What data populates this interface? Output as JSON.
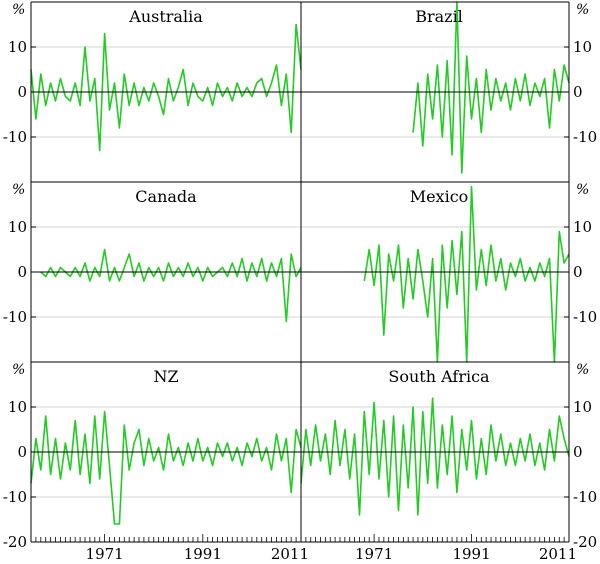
{
  "chart_data": {
    "type": "line",
    "unit_label": "%",
    "layout": "3x2 small multiples, shared axes",
    "x_ticks": [
      1971,
      1991,
      2011
    ],
    "xlim": [
      1956,
      2011
    ],
    "ylim": [
      -20,
      20
    ],
    "y_ticks": [
      10,
      0,
      -10
    ],
    "y_ticks_bottom": [
      10,
      0,
      -10,
      -20
    ],
    "grid": true,
    "line_color": "#22cc22",
    "panels": [
      {
        "title": "Australia",
        "series": [
          {
            "x": [
              1956,
              1957,
              1958,
              1959,
              1960,
              1961,
              1962,
              1963,
              1964,
              1965,
              1966,
              1967,
              1968,
              1969,
              1970,
              1971,
              1972,
              1973,
              1974,
              1975,
              1976,
              1977,
              1978,
              1979,
              1980,
              1981,
              1982,
              1983,
              1984,
              1985,
              1986,
              1987,
              1988,
              1989,
              1990,
              1991,
              1992,
              1993,
              1994,
              1995,
              1996,
              1997,
              1998,
              1999,
              2000,
              2001,
              2002,
              2003,
              2004,
              2005,
              2006,
              2007,
              2008,
              2009,
              2010,
              2011
            ],
            "values": [
              5,
              -6,
              4,
              -3,
              2,
              -2,
              3,
              -1,
              -2,
              2,
              -3,
              10,
              -2,
              3,
              -13,
              13,
              -4,
              2,
              -8,
              4,
              -3,
              2,
              -3,
              1,
              -2,
              2,
              -1,
              -5,
              3,
              -2,
              1,
              5,
              -3,
              2,
              -1,
              -2,
              1,
              -3,
              2,
              -1,
              1,
              -2,
              2,
              -1,
              1,
              -1,
              2,
              3,
              -1,
              2,
              6,
              -3,
              4,
              -9,
              15,
              5
            ]
          }
        ]
      },
      {
        "title": "Brazil",
        "series": [
          {
            "x": [
              1979,
              1980,
              1981,
              1982,
              1983,
              1984,
              1985,
              1986,
              1987,
              1988,
              1989,
              1990,
              1991,
              1992,
              1993,
              1994,
              1995,
              1996,
              1997,
              1998,
              1999,
              2000,
              2001,
              2002,
              2003,
              2004,
              2005,
              2006,
              2007,
              2008,
              2009,
              2010,
              2011
            ],
            "values": [
              -9,
              2,
              -12,
              4,
              -6,
              6,
              -10,
              7,
              -14,
              20,
              -18,
              8,
              -6,
              3,
              -9,
              5,
              -4,
              3,
              -2,
              2,
              -4,
              3,
              -2,
              4,
              -3,
              2,
              -1,
              3,
              -8,
              5,
              -2,
              6,
              2
            ]
          }
        ]
      },
      {
        "title": "Canada",
        "series": [
          {
            "x": [
              1958,
              1959,
              1960,
              1961,
              1962,
              1963,
              1964,
              1965,
              1966,
              1967,
              1968,
              1969,
              1970,
              1971,
              1972,
              1973,
              1974,
              1975,
              1976,
              1977,
              1978,
              1979,
              1980,
              1981,
              1982,
              1983,
              1984,
              1985,
              1986,
              1987,
              1988,
              1989,
              1990,
              1991,
              1992,
              1993,
              1994,
              1995,
              1996,
              1997,
              1998,
              1999,
              2000,
              2001,
              2002,
              2003,
              2004,
              2005,
              2006,
              2007,
              2008,
              2009,
              2010,
              2011
            ],
            "values": [
              0,
              -1,
              1,
              -1,
              1,
              0,
              -1,
              1,
              -1,
              2,
              -2,
              1,
              -1,
              5,
              -2,
              1,
              -2,
              1,
              4,
              -1,
              2,
              -2,
              1,
              -1,
              1,
              -2,
              2,
              -1,
              1,
              -1,
              2,
              -1,
              1,
              -2,
              1,
              -1,
              0,
              1,
              -1,
              2,
              -1,
              3,
              -2,
              2,
              -1,
              3,
              -2,
              2,
              -1,
              3,
              -11,
              4,
              -1,
              1
            ]
          }
        ]
      },
      {
        "title": "Mexico",
        "series": [
          {
            "x": [
              1969,
              1970,
              1971,
              1972,
              1973,
              1974,
              1975,
              1976,
              1977,
              1978,
              1979,
              1980,
              1981,
              1982,
              1983,
              1984,
              1985,
              1986,
              1987,
              1988,
              1989,
              1990,
              1991,
              1992,
              1993,
              1994,
              1995,
              1996,
              1997,
              1998,
              1999,
              2000,
              2001,
              2002,
              2003,
              2004,
              2005,
              2006,
              2007,
              2008,
              2009,
              2010,
              2011
            ],
            "values": [
              -2,
              5,
              -3,
              6,
              -14,
              4,
              -2,
              6,
              -8,
              3,
              -6,
              5,
              -2,
              -10,
              3,
              -20,
              6,
              -8,
              7,
              -5,
              9,
              -20,
              19,
              -4,
              5,
              -3,
              6,
              -2,
              3,
              -4,
              2,
              -1,
              3,
              -2,
              1,
              -2,
              2,
              -1,
              3,
              -20,
              9,
              2,
              4
            ]
          }
        ]
      },
      {
        "title": "NZ",
        "series": [
          {
            "x": [
              1956,
              1957,
              1958,
              1959,
              1960,
              1961,
              1962,
              1963,
              1964,
              1965,
              1966,
              1967,
              1968,
              1969,
              1970,
              1971,
              1972,
              1973,
              1974,
              1975,
              1976,
              1977,
              1978,
              1979,
              1980,
              1981,
              1982,
              1983,
              1984,
              1985,
              1986,
              1987,
              1988,
              1989,
              1990,
              1991,
              1992,
              1993,
              1994,
              1995,
              1996,
              1997,
              1998,
              1999,
              2000,
              2001,
              2002,
              2003,
              2004,
              2005,
              2006,
              2007,
              2008,
              2009,
              2010,
              2011
            ],
            "values": [
              -7,
              3,
              -4,
              8,
              -5,
              3,
              -6,
              2,
              -4,
              7,
              -5,
              4,
              -7,
              8,
              -6,
              9,
              -3,
              -16,
              -16,
              6,
              -4,
              2,
              5,
              -3,
              3,
              -2,
              1,
              -4,
              4,
              -2,
              1,
              -3,
              2,
              -2,
              3,
              -2,
              1,
              -3,
              2,
              -1,
              2,
              -2,
              1,
              -3,
              2,
              -1,
              3,
              -2,
              1,
              -4,
              4,
              -2,
              3,
              -9,
              5,
              1
            ]
          }
        ]
      },
      {
        "title": "South Africa",
        "series": [
          {
            "x": [
              1956,
              1957,
              1958,
              1959,
              1960,
              1961,
              1962,
              1963,
              1964,
              1965,
              1966,
              1967,
              1968,
              1969,
              1970,
              1971,
              1972,
              1973,
              1974,
              1975,
              1976,
              1977,
              1978,
              1979,
              1980,
              1981,
              1982,
              1983,
              1984,
              1985,
              1986,
              1987,
              1988,
              1989,
              1990,
              1991,
              1992,
              1993,
              1994,
              1995,
              1996,
              1997,
              1998,
              1999,
              2000,
              2001,
              2002,
              2003,
              2004,
              2005,
              2006,
              2007,
              2008,
              2009,
              2010,
              2011
            ],
            "values": [
              -7,
              5,
              -3,
              6,
              -2,
              4,
              -5,
              7,
              -3,
              5,
              -6,
              4,
              -14,
              9,
              -5,
              11,
              -6,
              7,
              -10,
              8,
              -13,
              6,
              -8,
              10,
              -14,
              9,
              -7,
              12,
              -8,
              6,
              -5,
              8,
              -9,
              5,
              -4,
              7,
              -6,
              3,
              -5,
              6,
              -2,
              4,
              -3,
              2,
              -3,
              3,
              -2,
              4,
              -3,
              2,
              -4,
              5,
              -2,
              8,
              3,
              -1
            ]
          }
        ]
      }
    ]
  }
}
